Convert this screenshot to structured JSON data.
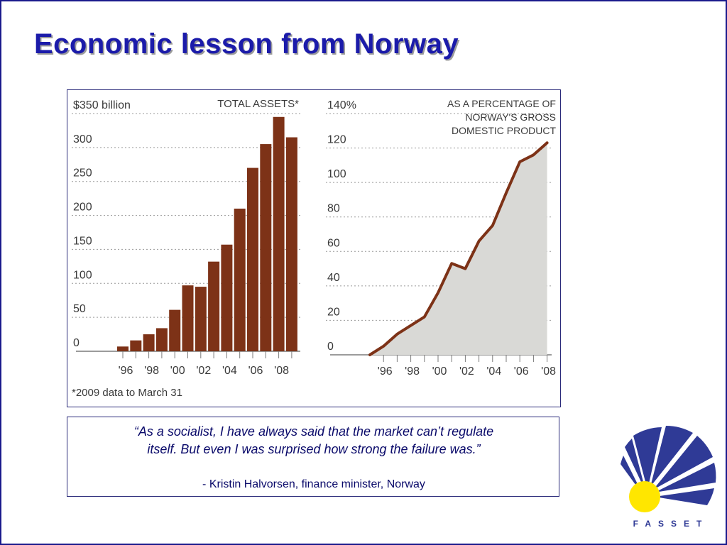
{
  "slide": {
    "title": "Economic lesson from Norway",
    "colors": {
      "title": "#1b1baa",
      "border": "#1a1a8c",
      "bar": "#7d3217",
      "line": "#7d3217",
      "area": "#d9d9d6"
    }
  },
  "chart_data": [
    {
      "type": "bar",
      "title": "TOTAL ASSETS*",
      "ylabel": "",
      "xlabel": "",
      "ylim": [
        0,
        350
      ],
      "y_ticks": [
        "$350 billion",
        "300",
        "250",
        "200",
        "150",
        "100",
        "50",
        "0"
      ],
      "x_tick_labels": [
        "'96",
        "'98",
        "'00",
        "'02",
        "'04",
        "'06",
        "'08"
      ],
      "categories": [
        "1996",
        "1997",
        "1998",
        "1999",
        "2000",
        "2001",
        "2002",
        "2003",
        "2004",
        "2005",
        "2006",
        "2007",
        "2008",
        "2009"
      ],
      "values": [
        7,
        16,
        25,
        34,
        61,
        97,
        95,
        132,
        157,
        210,
        270,
        305,
        345,
        315
      ],
      "footnote": "*2009 data to March 31",
      "grid": true
    },
    {
      "type": "area",
      "title": "AS A PERCENTAGE OF NORWAY'S GROSS DOMESTIC PRODUCT",
      "title_lines": [
        "AS A PERCENTAGE OF",
        "NORWAY'S GROSS",
        "DOMESTIC PRODUCT"
      ],
      "ylabel": "",
      "xlabel": "",
      "ylim": [
        0,
        140
      ],
      "y_ticks": [
        "140%",
        "120",
        "100",
        "80",
        "60",
        "40",
        "20",
        "0"
      ],
      "x_tick_labels": [
        "'96",
        "'98",
        "'00",
        "'02",
        "'04",
        "'06",
        "'08"
      ],
      "x": [
        1995,
        1996,
        1997,
        1998,
        1999,
        2000,
        2001,
        2002,
        2003,
        2004,
        2005,
        2006,
        2007,
        2008
      ],
      "values": [
        0,
        5,
        12,
        17,
        22,
        36,
        53,
        50,
        66,
        75,
        94,
        112,
        116,
        123
      ],
      "grid": true
    }
  ],
  "quote": {
    "line1": "“As a socialist, I have always said that the market can’t regulate",
    "line2": "itself. But even I was surprised how strong the failure was.”",
    "author": "- Kristin Halvorsen, finance minister, Norway"
  },
  "logo": {
    "text": "FASSET",
    "colors": {
      "rays": "#2f3a96",
      "sun": "#ffe600"
    }
  }
}
